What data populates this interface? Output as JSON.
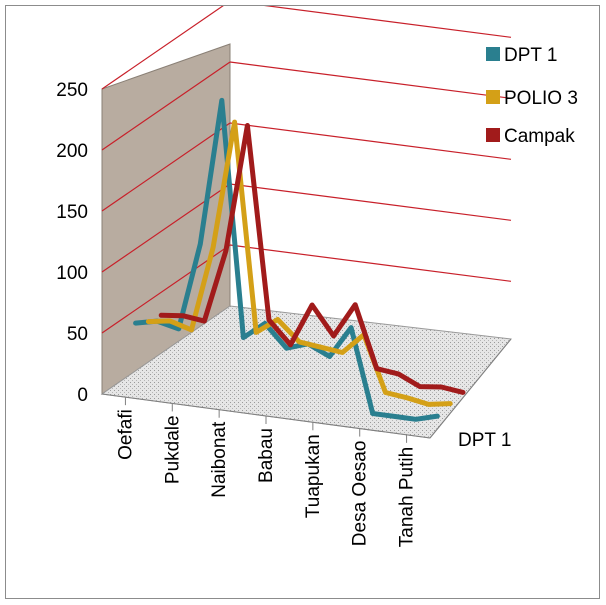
{
  "chart_data": {
    "type": "line",
    "subtype": "3d-line",
    "title": "",
    "categories": [
      "Oefafi",
      "Pukdale",
      "Naibonat",
      "Babau",
      "Tuapukan",
      "Desa Oesao",
      "Tanah Putih"
    ],
    "x": [
      "Oefafi",
      "Oefafi",
      "Pukdale",
      "Pukdale",
      "Pukdale",
      "Naibonat",
      "Naibonat",
      "Babau",
      "Babau",
      "Tuapukan",
      "Tuapukan",
      "Desa Oesao",
      "Desa Oesao",
      "Tanah Putih",
      "Tanah Putih"
    ],
    "series": [
      {
        "name": "DPT 1",
        "color": "#2a7f8f",
        "values": [
          48,
          52,
          48,
          120,
          240,
          48,
          62,
          44,
          50,
          42,
          68,
          0,
          0,
          0,
          5
        ]
      },
      {
        "name": "POLIO 3",
        "color": "#d4a017",
        "values": [
          42,
          45,
          40,
          110,
          215,
          45,
          58,
          42,
          40,
          38,
          55,
          10,
          8,
          5,
          8
        ]
      },
      {
        "name": "Campak",
        "color": "#a11b1b",
        "values": [
          40,
          42,
          40,
          100,
          205,
          48,
          30,
          65,
          42,
          70,
          20,
          18,
          10,
          12,
          10
        ]
      }
    ],
    "yticks": [
      "0",
      "50",
      "100",
      "150",
      "200",
      "250"
    ],
    "ylim": [
      0,
      250
    ],
    "depth_axis_label": "DPT 1",
    "legend_position": "top-right",
    "grid": true
  }
}
